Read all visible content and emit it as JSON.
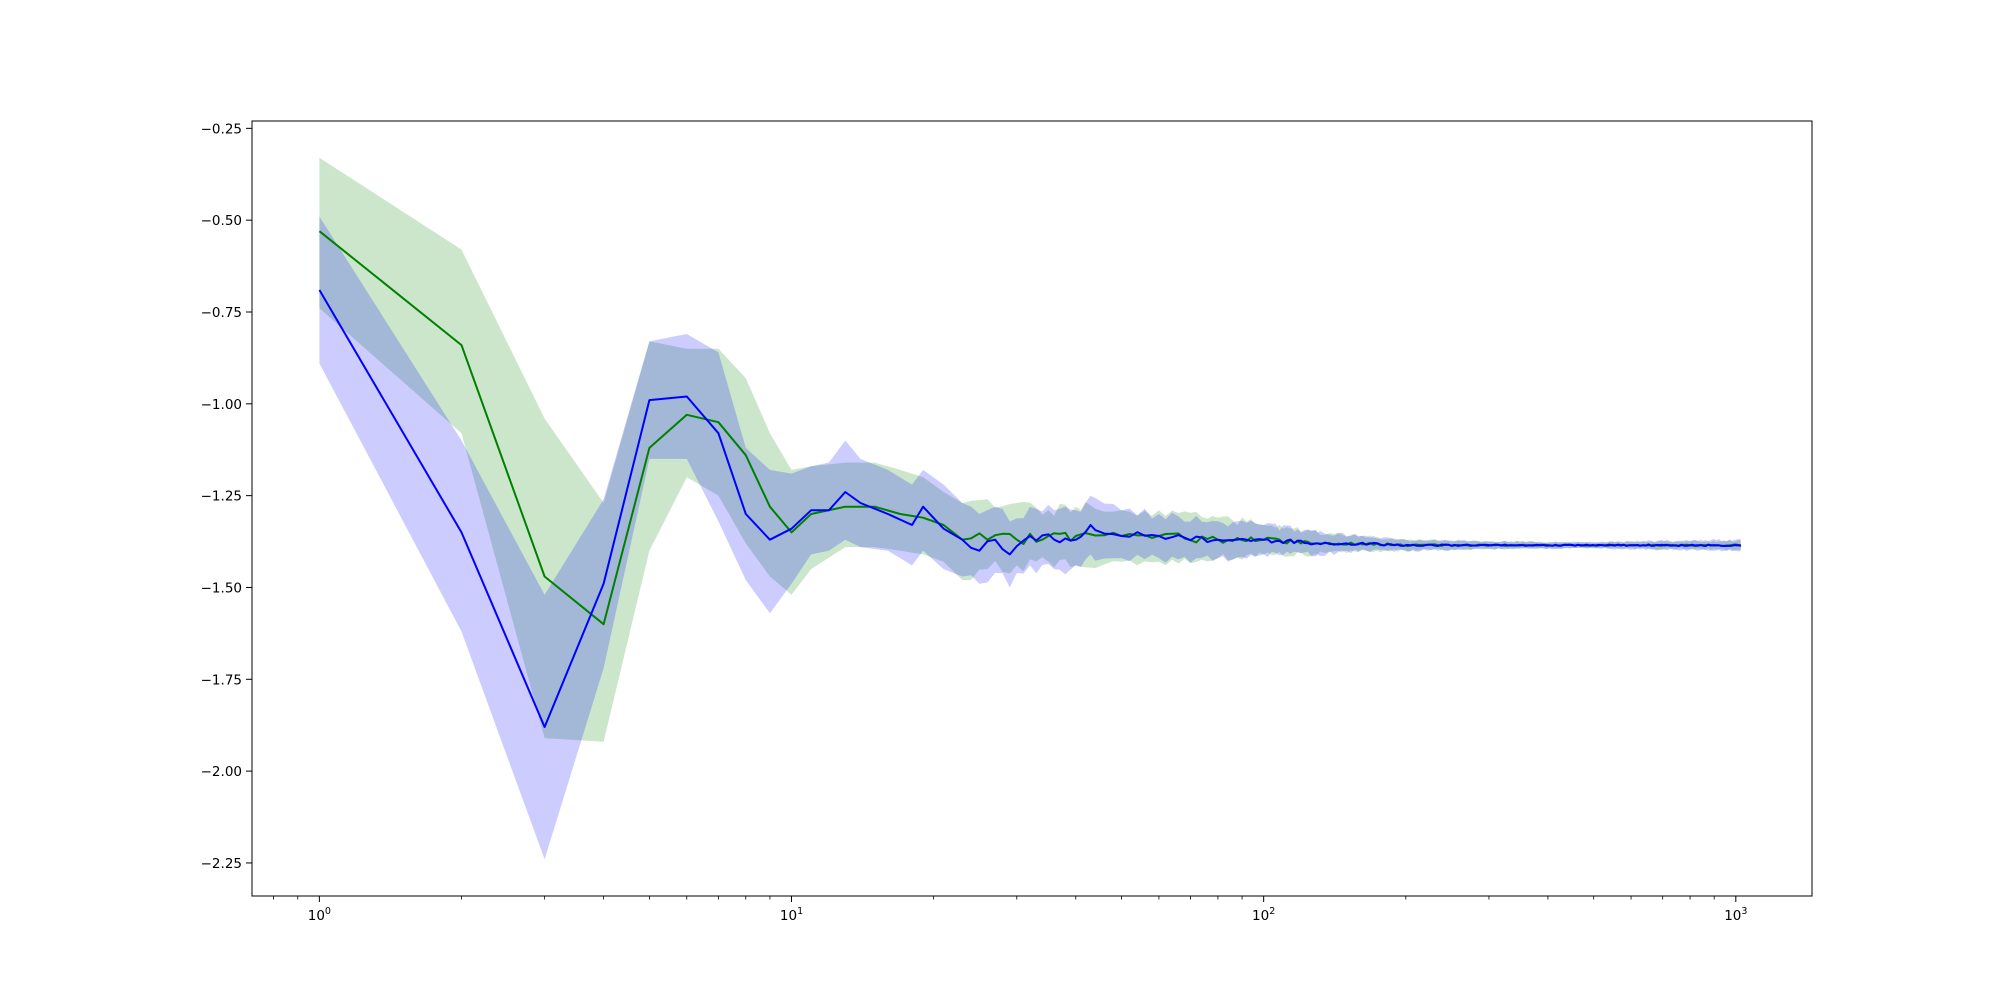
{
  "chart_data": {
    "type": "line",
    "x_scale": "log",
    "xlim": [
      0.72,
      1450
    ],
    "ylim": [
      -2.34,
      -0.23
    ],
    "grid": false,
    "legend": "none",
    "title": "",
    "xlabel": "",
    "ylabel": "",
    "x_tick_labels": [
      {
        "value": 1,
        "base": "10",
        "exp": "0"
      },
      {
        "value": 10,
        "base": "10",
        "exp": "1"
      },
      {
        "value": 100,
        "base": "10",
        "exp": "2"
      },
      {
        "value": 1000,
        "base": "10",
        "exp": "3"
      }
    ],
    "y_ticks": [
      -0.25,
      -0.5,
      -0.75,
      -1.0,
      -1.25,
      -1.5,
      -1.75,
      -2.0,
      -2.25
    ],
    "y_tick_labels": [
      "−0.25",
      "−0.50",
      "−0.75",
      "−1.00",
      "−1.25",
      "−1.50",
      "−1.75",
      "−2.00",
      "−2.25"
    ],
    "series": [
      {
        "color": "#008000",
        "band_color": "#008000",
        "band_opacity": 0.2,
        "points": [
          {
            "x": 1,
            "y": -0.53,
            "lo": -0.74,
            "hi": -0.33
          },
          {
            "x": 2,
            "y": -0.84,
            "lo": -1.08,
            "hi": -0.58
          },
          {
            "x": 3,
            "y": -1.47,
            "lo": -1.91,
            "hi": -1.04
          },
          {
            "x": 4,
            "y": -1.6,
            "lo": -1.92,
            "hi": -1.27
          },
          {
            "x": 5,
            "y": -1.12,
            "lo": -1.4,
            "hi": -0.83
          },
          {
            "x": 6,
            "y": -1.03,
            "lo": -1.2,
            "hi": -0.85
          },
          {
            "x": 7,
            "y": -1.05,
            "lo": -1.25,
            "hi": -0.85
          },
          {
            "x": 8,
            "y": -1.14,
            "lo": -1.38,
            "hi": -0.93
          },
          {
            "x": 9,
            "y": -1.28,
            "lo": -1.47,
            "hi": -1.08
          },
          {
            "x": 10,
            "y": -1.35,
            "lo": -1.52,
            "hi": -1.18
          },
          {
            "x": 11,
            "y": -1.3,
            "lo": -1.45,
            "hi": -1.17
          },
          {
            "x": 13,
            "y": -1.28,
            "lo": -1.39,
            "hi": -1.16
          },
          {
            "x": 15,
            "y": -1.28,
            "lo": -1.39,
            "hi": -1.16
          },
          {
            "x": 17,
            "y": -1.3,
            "lo": -1.4,
            "hi": -1.18
          },
          {
            "x": 19,
            "y": -1.31,
            "lo": -1.41,
            "hi": -1.2
          },
          {
            "x": 21,
            "y": -1.33,
            "lo": -1.43,
            "hi": -1.24
          },
          {
            "x": 23,
            "y": -1.37,
            "lo": -1.48,
            "hi": -1.27
          },
          {
            "x": 26,
            "y": -1.37,
            "lo": -1.45,
            "hi": -1.26
          },
          {
            "x": 30,
            "y": -1.37,
            "lo": -1.44,
            "hi": -1.27
          },
          {
            "x": 35,
            "y": -1.36,
            "lo": -1.43,
            "hi": -1.29
          },
          {
            "x": 40,
            "y": -1.36,
            "lo": -1.44,
            "hi": -1.28
          },
          {
            "x": 50,
            "y": -1.36,
            "lo": -1.43,
            "hi": -1.29
          },
          {
            "x": 60,
            "y": -1.36,
            "lo": -1.43,
            "hi": -1.29
          },
          {
            "x": 80,
            "y": -1.37,
            "lo": -1.42,
            "hi": -1.31
          },
          {
            "x": 100,
            "y": -1.37,
            "lo": -1.41,
            "hi": -1.33
          },
          {
            "x": 130,
            "y": -1.38,
            "lo": -1.41,
            "hi": -1.35
          },
          {
            "x": 160,
            "y": -1.38,
            "lo": -1.4,
            "hi": -1.36
          },
          {
            "x": 200,
            "y": -1.385,
            "lo": -1.4,
            "hi": -1.37
          },
          {
            "x": 300,
            "y": -1.385,
            "lo": -1.395,
            "hi": -1.375
          },
          {
            "x": 500,
            "y": -1.385,
            "lo": -1.392,
            "hi": -1.378
          },
          {
            "x": 700,
            "y": -1.385,
            "lo": -1.395,
            "hi": -1.375
          },
          {
            "x": 1024,
            "y": -1.385,
            "lo": -1.397,
            "hi": -1.373
          }
        ]
      },
      {
        "color": "#0000ff",
        "band_color": "#0000ff",
        "band_opacity": 0.2,
        "points": [
          {
            "x": 1,
            "y": -0.69,
            "lo": -0.89,
            "hi": -0.49
          },
          {
            "x": 2,
            "y": -1.35,
            "lo": -1.62,
            "hi": -1.1
          },
          {
            "x": 3,
            "y": -1.88,
            "lo": -2.24,
            "hi": -1.52
          },
          {
            "x": 4,
            "y": -1.49,
            "lo": -1.72,
            "hi": -1.26
          },
          {
            "x": 5,
            "y": -0.99,
            "lo": -1.15,
            "hi": -0.83
          },
          {
            "x": 6,
            "y": -0.98,
            "lo": -1.15,
            "hi": -0.81
          },
          {
            "x": 7,
            "y": -1.08,
            "lo": -1.32,
            "hi": -0.86
          },
          {
            "x": 8,
            "y": -1.3,
            "lo": -1.48,
            "hi": -1.12
          },
          {
            "x": 9,
            "y": -1.37,
            "lo": -1.57,
            "hi": -1.18
          },
          {
            "x": 10,
            "y": -1.34,
            "lo": -1.49,
            "hi": -1.19
          },
          {
            "x": 11,
            "y": -1.29,
            "lo": -1.41,
            "hi": -1.17
          },
          {
            "x": 12,
            "y": -1.29,
            "lo": -1.4,
            "hi": -1.16
          },
          {
            "x": 13,
            "y": -1.24,
            "lo": -1.37,
            "hi": -1.1
          },
          {
            "x": 14,
            "y": -1.27,
            "lo": -1.39,
            "hi": -1.15
          },
          {
            "x": 16,
            "y": -1.3,
            "lo": -1.4,
            "hi": -1.18
          },
          {
            "x": 18,
            "y": -1.33,
            "lo": -1.44,
            "hi": -1.22
          },
          {
            "x": 19,
            "y": -1.28,
            "lo": -1.4,
            "hi": -1.18
          },
          {
            "x": 21,
            "y": -1.34,
            "lo": -1.45,
            "hi": -1.22
          },
          {
            "x": 23,
            "y": -1.37,
            "lo": -1.47,
            "hi": -1.27
          },
          {
            "x": 25,
            "y": -1.4,
            "lo": -1.49,
            "hi": -1.3
          },
          {
            "x": 27,
            "y": -1.37,
            "lo": -1.46,
            "hi": -1.28
          },
          {
            "x": 29,
            "y": -1.41,
            "lo": -1.5,
            "hi": -1.32
          },
          {
            "x": 32,
            "y": -1.36,
            "lo": -1.44,
            "hi": -1.28
          },
          {
            "x": 36,
            "y": -1.37,
            "lo": -1.45,
            "hi": -1.29
          },
          {
            "x": 40,
            "y": -1.37,
            "lo": -1.44,
            "hi": -1.29
          },
          {
            "x": 43,
            "y": -1.33,
            "lo": -1.41,
            "hi": -1.25
          },
          {
            "x": 50,
            "y": -1.36,
            "lo": -1.42,
            "hi": -1.29
          },
          {
            "x": 60,
            "y": -1.36,
            "lo": -1.42,
            "hi": -1.3
          },
          {
            "x": 80,
            "y": -1.37,
            "lo": -1.42,
            "hi": -1.32
          },
          {
            "x": 100,
            "y": -1.37,
            "lo": -1.41,
            "hi": -1.33
          },
          {
            "x": 130,
            "y": -1.38,
            "lo": -1.41,
            "hi": -1.35
          },
          {
            "x": 160,
            "y": -1.38,
            "lo": -1.4,
            "hi": -1.36
          },
          {
            "x": 200,
            "y": -1.385,
            "lo": -1.4,
            "hi": -1.37
          },
          {
            "x": 300,
            "y": -1.385,
            "lo": -1.395,
            "hi": -1.375
          },
          {
            "x": 500,
            "y": -1.385,
            "lo": -1.393,
            "hi": -1.377
          },
          {
            "x": 700,
            "y": -1.385,
            "lo": -1.397,
            "hi": -1.373
          },
          {
            "x": 1024,
            "y": -1.385,
            "lo": -1.4,
            "hi": -1.37
          }
        ]
      }
    ]
  }
}
